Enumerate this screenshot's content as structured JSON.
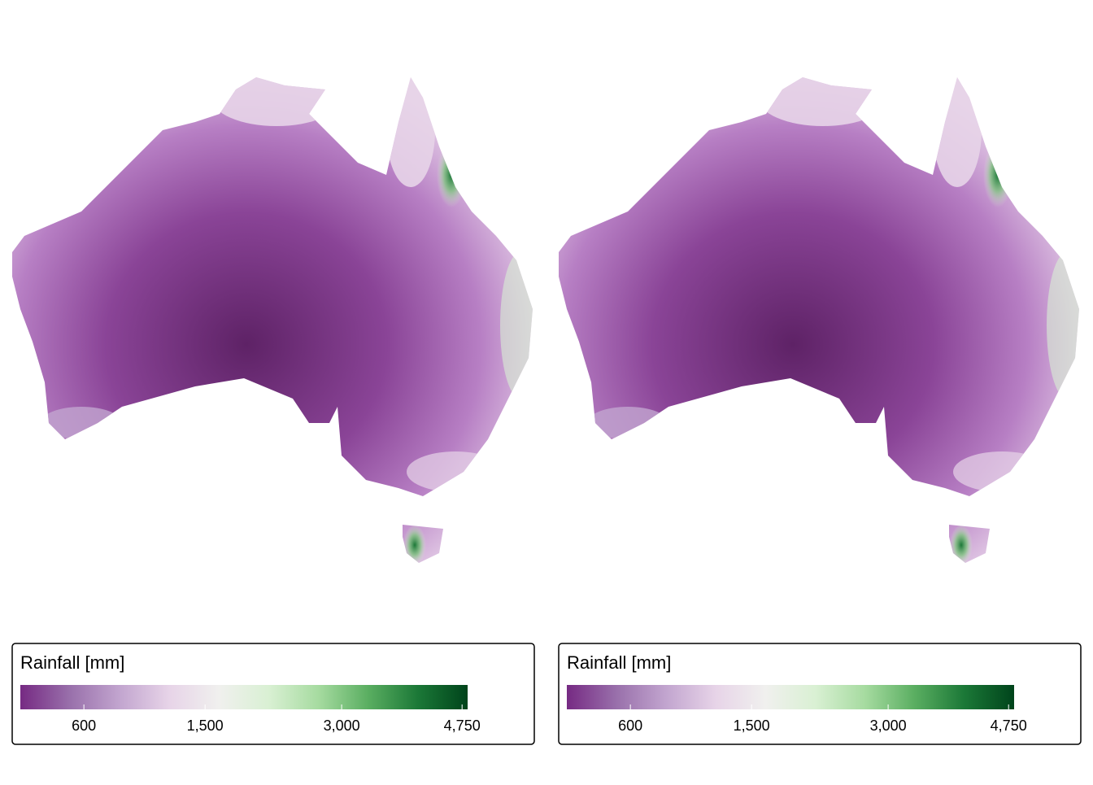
{
  "maps": [
    {
      "legend": {
        "title": "Rainfall [mm]",
        "scale": "sqrt",
        "lim": [
          290,
          4840
        ],
        "ticks": [
          {
            "value": 600,
            "label": "600"
          },
          {
            "value": 1500,
            "label": "1,500"
          },
          {
            "value": 3000,
            "label": "3,000"
          },
          {
            "value": 4750,
            "label": "4,750"
          }
        ],
        "palette": [
          "#762a83",
          "#9970ab",
          "#c2a5cf",
          "#e7d4e8",
          "#f0f0ee",
          "#d9f0d3",
          "#a6dba0",
          "#5aae61",
          "#1b7837",
          "#00441b"
        ]
      }
    },
    {
      "legend": {
        "title": "Rainfall [mm]",
        "scale": "sqrt",
        "lim": [
          290,
          4840
        ],
        "ticks": [
          {
            "value": 600,
            "label": "600"
          },
          {
            "value": 1500,
            "label": "1,500"
          },
          {
            "value": 3000,
            "label": "3,000"
          },
          {
            "value": 4750,
            "label": "4,750"
          }
        ],
        "palette": [
          "#762a83",
          "#9970ab",
          "#c2a5cf",
          "#e7d4e8",
          "#f0f0ee",
          "#d9f0d3",
          "#a6dba0",
          "#5aae61",
          "#1b7837",
          "#00441b"
        ]
      }
    }
  ]
}
